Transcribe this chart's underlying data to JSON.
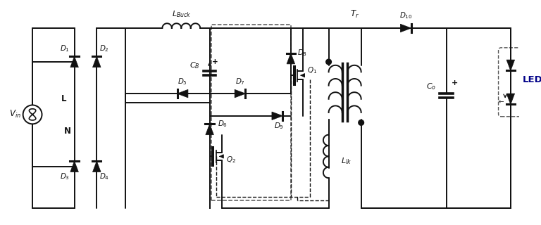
{
  "bg": "#ffffff",
  "lc": "#111111",
  "lw": 1.4,
  "fw": 7.68,
  "fh": 3.2,
  "dpi": 100,
  "yt": 285,
  "yb": 18,
  "ym": 175,
  "labels": {
    "Vin": "$V_{in}$",
    "L_label": "L",
    "N_label": "N",
    "D1": "$D_1$",
    "D2": "$D_2$",
    "D3": "$D_3$",
    "D4": "$D_4$",
    "D5": "$D_5$",
    "D6": "$D_6$",
    "D7": "$D_7$",
    "D8": "$D_8$",
    "D9": "$D_9$",
    "D10": "$D_{10}$",
    "Q1": "$Q_1$",
    "Q2": "$Q_2$",
    "CB": "$C_B$",
    "Co": "$C_o$",
    "LBuck": "$L_{Buck}$",
    "Llk": "$L_{lk}$",
    "Tr": "$T_r$",
    "LED": "LED"
  }
}
